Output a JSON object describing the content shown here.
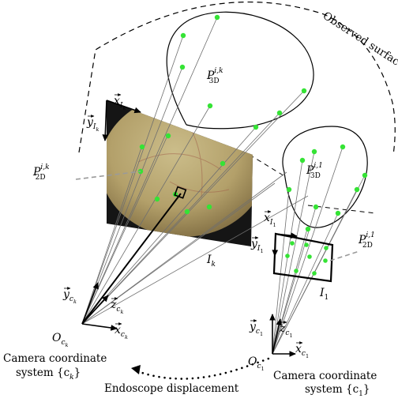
{
  "labels": {
    "observed_surface": "Observed surface",
    "cam_k_title_1": "Camera coordinate",
    "cam_k_title_2": "system {c",
    "cam_k_title_sub": "k",
    "cam_1_title_1": "Camera coordinate",
    "cam_1_title_2": "system {c",
    "cam_1_title_sub": "1",
    "displacement": "Endoscope displacement",
    "p3d_k": {
      "base": "P",
      "sup": "i,k",
      "sub": "3D"
    },
    "p2d_k": {
      "base": "P",
      "sup": "i,k",
      "sub": "2D"
    },
    "p3d_1": {
      "base": "P",
      "sup": "i,1",
      "sub": "3D"
    },
    "p2d_1": {
      "base": "P",
      "sup": "i,1",
      "sub": "2D"
    },
    "image_k": {
      "base": "I",
      "sub": "k"
    },
    "image_1": {
      "base": "I",
      "sub": "1"
    },
    "xI_k": {
      "base": "x",
      "sub": "I",
      "subsub": "k"
    },
    "yI_k": {
      "base": "y",
      "sub": "I",
      "subsub": "k"
    },
    "xI_1": {
      "base": "x",
      "sub": "I",
      "subsub": "1"
    },
    "yI_1": {
      "base": "y",
      "sub": "I",
      "subsub": "1"
    },
    "y_ck": {
      "base": "y",
      "sub": "c",
      "subsub": "k"
    },
    "z_ck": {
      "base": "z",
      "sub": "c",
      "subsub": "k"
    },
    "x_ck": {
      "base": "x",
      "sub": "c",
      "subsub": "k"
    },
    "o_ck": {
      "base": "O",
      "sub": "c",
      "subsub": "k"
    },
    "y_c1": {
      "base": "y",
      "sub": "c",
      "subsub": "1"
    },
    "z_c1": {
      "base": "z",
      "sub": "c",
      "subsub": "1"
    },
    "x_c1": {
      "base": "x",
      "sub": "c",
      "subsub": "1"
    },
    "o_c1": {
      "base": "O",
      "sub": "c",
      "subsub": "1"
    }
  },
  "colors": {
    "point": "#35e335",
    "ray": "#6f6f6f",
    "image_frame": "#1a1a1a",
    "endoscopy_tissue": "#b5a06a"
  }
}
